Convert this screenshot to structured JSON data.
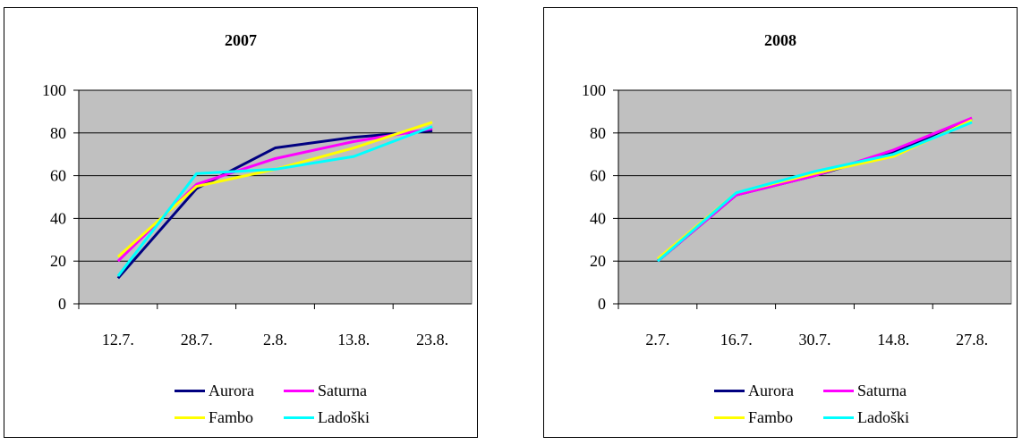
{
  "chart_data": [
    {
      "type": "line",
      "title": "2007",
      "categories": [
        "12.7.",
        "28.7.",
        "2.8.",
        "13.8.",
        "23.8."
      ],
      "ylim": [
        0,
        100
      ],
      "yticks": [
        0,
        20,
        40,
        60,
        80,
        100
      ],
      "grid": true,
      "legend_position": "bottom",
      "series": [
        {
          "name": "Aurora",
          "color": "#000080",
          "values": [
            12,
            54,
            73,
            78,
            81
          ]
        },
        {
          "name": "Saturna",
          "color": "#ff00ff",
          "values": [
            20,
            56,
            68,
            76,
            82
          ]
        },
        {
          "name": "Fambo",
          "color": "#ffff00",
          "values": [
            22,
            55,
            63,
            73,
            85
          ]
        },
        {
          "name": "Ladoški",
          "color": "#00ffff",
          "values": [
            13,
            61,
            63,
            69,
            83
          ]
        }
      ]
    },
    {
      "type": "line",
      "title": "2008",
      "categories": [
        "2.7.",
        "16.7.",
        "30.7.",
        "14.8.",
        "27.8."
      ],
      "ylim": [
        0,
        100
      ],
      "yticks": [
        0,
        20,
        40,
        60,
        80,
        100
      ],
      "grid": true,
      "legend_position": "bottom",
      "series": [
        {
          "name": "Aurora",
          "color": "#000080",
          "values": [
            20,
            51,
            60,
            71,
            86
          ]
        },
        {
          "name": "Saturna",
          "color": "#ff00ff",
          "values": [
            20,
            51,
            60,
            72,
            87
          ]
        },
        {
          "name": "Fambo",
          "color": "#ffff00",
          "values": [
            21,
            52,
            61,
            69,
            86
          ]
        },
        {
          "name": "Ladoški",
          "color": "#00ffff",
          "values": [
            20,
            52,
            62,
            70,
            85
          ]
        }
      ]
    }
  ]
}
